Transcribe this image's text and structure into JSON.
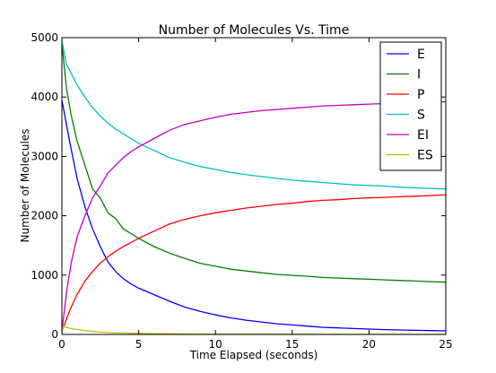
{
  "chart_data": {
    "type": "line",
    "title": "Number of Molecules Vs. Time",
    "xlabel": "Time Elapsed (seconds)",
    "ylabel": "Number of Molecules",
    "xlim": [
      0,
      25
    ],
    "ylim": [
      0,
      5000
    ],
    "xticks": [
      0,
      5,
      10,
      15,
      20,
      25
    ],
    "yticks": [
      0,
      1000,
      2000,
      3000,
      4000,
      5000
    ],
    "grid": false,
    "legend_position": "top-right",
    "series": [
      {
        "name": "E",
        "color": "#0000ff",
        "points": [
          [
            0,
            3950
          ],
          [
            0.5,
            3250
          ],
          [
            1,
            2620
          ],
          [
            1.5,
            2150
          ],
          [
            2,
            1780
          ],
          [
            2.5,
            1480
          ],
          [
            3,
            1220
          ],
          [
            3.5,
            1060
          ],
          [
            4,
            940
          ],
          [
            4.5,
            850
          ],
          [
            5,
            780
          ],
          [
            6,
            670
          ],
          [
            7,
            560
          ],
          [
            8,
            460
          ],
          [
            9,
            390
          ],
          [
            10,
            330
          ],
          [
            11,
            280
          ],
          [
            12,
            240
          ],
          [
            13,
            210
          ],
          [
            14,
            180
          ],
          [
            15,
            160
          ],
          [
            16,
            140
          ],
          [
            17,
            120
          ],
          [
            18,
            110
          ],
          [
            19,
            100
          ],
          [
            20,
            90
          ],
          [
            21,
            82
          ],
          [
            22,
            76
          ],
          [
            23,
            70
          ],
          [
            24,
            65
          ],
          [
            25,
            60
          ]
        ]
      },
      {
        "name": "I",
        "color": "#008000",
        "points": [
          [
            0,
            4900
          ],
          [
            0.3,
            4150
          ],
          [
            0.6,
            3700
          ],
          [
            1,
            3250
          ],
          [
            1.5,
            2850
          ],
          [
            2,
            2450
          ],
          [
            2.5,
            2300
          ],
          [
            3,
            2050
          ],
          [
            3.5,
            1950
          ],
          [
            4,
            1780
          ],
          [
            4.5,
            1700
          ],
          [
            5,
            1620
          ],
          [
            6,
            1480
          ],
          [
            7,
            1370
          ],
          [
            8,
            1280
          ],
          [
            9,
            1200
          ],
          [
            10,
            1150
          ],
          [
            11,
            1100
          ],
          [
            12,
            1070
          ],
          [
            13,
            1040
          ],
          [
            14,
            1010
          ],
          [
            15,
            995
          ],
          [
            16,
            980
          ],
          [
            17,
            960
          ],
          [
            18,
            950
          ],
          [
            19,
            940
          ],
          [
            20,
            930
          ],
          [
            21,
            920
          ],
          [
            22,
            910
          ],
          [
            23,
            900
          ],
          [
            24,
            890
          ],
          [
            25,
            880
          ]
        ]
      },
      {
        "name": "P",
        "color": "#ff0000",
        "points": [
          [
            0,
            50
          ],
          [
            0.5,
            400
          ],
          [
            1,
            680
          ],
          [
            1.5,
            900
          ],
          [
            2,
            1060
          ],
          [
            2.5,
            1200
          ],
          [
            3,
            1310
          ],
          [
            3.5,
            1400
          ],
          [
            4,
            1480
          ],
          [
            4.5,
            1550
          ],
          [
            5,
            1620
          ],
          [
            6,
            1740
          ],
          [
            7,
            1860
          ],
          [
            8,
            1940
          ],
          [
            9,
            2000
          ],
          [
            10,
            2050
          ],
          [
            11,
            2090
          ],
          [
            12,
            2130
          ],
          [
            13,
            2160
          ],
          [
            14,
            2190
          ],
          [
            15,
            2210
          ],
          [
            16,
            2240
          ],
          [
            17,
            2260
          ],
          [
            18,
            2270
          ],
          [
            19,
            2290
          ],
          [
            20,
            2300
          ],
          [
            21,
            2310
          ],
          [
            22,
            2320
          ],
          [
            23,
            2330
          ],
          [
            24,
            2340
          ],
          [
            25,
            2350
          ]
        ]
      },
      {
        "name": "S",
        "color": "#00bfbf",
        "points": [
          [
            0,
            4950
          ],
          [
            0.3,
            4550
          ],
          [
            0.6,
            4400
          ],
          [
            1,
            4200
          ],
          [
            1.5,
            4000
          ],
          [
            2,
            3820
          ],
          [
            2.5,
            3680
          ],
          [
            3,
            3560
          ],
          [
            3.5,
            3460
          ],
          [
            4,
            3380
          ],
          [
            4.5,
            3300
          ],
          [
            5,
            3220
          ],
          [
            6,
            3100
          ],
          [
            7,
            2980
          ],
          [
            8,
            2900
          ],
          [
            9,
            2830
          ],
          [
            10,
            2780
          ],
          [
            11,
            2730
          ],
          [
            12,
            2690
          ],
          [
            13,
            2660
          ],
          [
            14,
            2630
          ],
          [
            15,
            2600
          ],
          [
            16,
            2580
          ],
          [
            17,
            2560
          ],
          [
            18,
            2540
          ],
          [
            19,
            2520
          ],
          [
            20,
            2510
          ],
          [
            21,
            2500
          ],
          [
            22,
            2480
          ],
          [
            23,
            2470
          ],
          [
            24,
            2460
          ],
          [
            25,
            2450
          ]
        ]
      },
      {
        "name": "EI",
        "color": "#bf00bf",
        "points": [
          [
            0,
            50
          ],
          [
            0.3,
            700
          ],
          [
            0.6,
            1200
          ],
          [
            1,
            1650
          ],
          [
            1.5,
            2000
          ],
          [
            2,
            2300
          ],
          [
            2.5,
            2500
          ],
          [
            3,
            2720
          ],
          [
            3.5,
            2850
          ],
          [
            4,
            2980
          ],
          [
            4.5,
            3080
          ],
          [
            5,
            3160
          ],
          [
            6,
            3300
          ],
          [
            7,
            3440
          ],
          [
            8,
            3540
          ],
          [
            9,
            3600
          ],
          [
            10,
            3660
          ],
          [
            11,
            3710
          ],
          [
            12,
            3740
          ],
          [
            13,
            3770
          ],
          [
            14,
            3790
          ],
          [
            15,
            3810
          ],
          [
            16,
            3830
          ],
          [
            17,
            3850
          ],
          [
            18,
            3860
          ],
          [
            19,
            3870
          ],
          [
            20,
            3880
          ],
          [
            21,
            3890
          ],
          [
            22,
            3900
          ],
          [
            23,
            3910
          ],
          [
            24,
            3915
          ],
          [
            25,
            3920
          ]
        ]
      },
      {
        "name": "ES",
        "color": "#bfbf00",
        "points": [
          [
            0,
            40
          ],
          [
            0.1,
            140
          ],
          [
            0.3,
            120
          ],
          [
            0.6,
            100
          ],
          [
            1,
            85
          ],
          [
            1.5,
            65
          ],
          [
            2,
            50
          ],
          [
            2.5,
            40
          ],
          [
            3,
            32
          ],
          [
            4,
            24
          ],
          [
            5,
            18
          ],
          [
            6,
            14
          ],
          [
            7,
            11
          ],
          [
            8,
            8
          ],
          [
            9,
            6
          ],
          [
            10,
            5
          ],
          [
            12,
            4
          ],
          [
            15,
            3
          ],
          [
            18,
            2
          ],
          [
            20,
            2
          ],
          [
            25,
            1
          ]
        ]
      }
    ]
  }
}
